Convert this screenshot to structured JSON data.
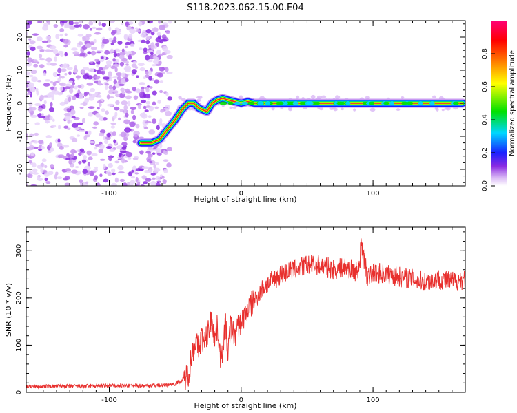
{
  "title": "S118.2023.062.15.00.E04",
  "colors": {
    "snr_line": "#e8302e",
    "ridge_core": "#e8302e",
    "noise": "#8a2be2"
  },
  "chart_data": [
    {
      "type": "heatmap",
      "xlabel": "Height of straight line (km)",
      "ylabel": "Frequency (Hz)",
      "xlim": [
        -163,
        170
      ],
      "ylim": [
        -25,
        25
      ],
      "x_ticks": [
        -100,
        0,
        100
      ],
      "y_ticks": [
        -20,
        -10,
        0,
        10,
        20
      ],
      "colorbar": {
        "label": "Normalized spectral amplitude",
        "range": [
          0.0,
          1.0
        ],
        "ticks": [
          "0.0",
          "0.2",
          "0.4",
          "0.6",
          "0.8"
        ],
        "colormap": [
          "#ffffff",
          "#d9b8f5",
          "#8a2be2",
          "#1a20ff",
          "#00d7ff",
          "#00e000",
          "#ffff00",
          "#ff8000",
          "#ff0000",
          "#ff0077"
        ]
      },
      "ridge_trace": {
        "x": [
          -76,
          -68,
          -62,
          -58,
          -54,
          -50,
          -45,
          -40,
          -36,
          -32,
          -29,
          -26,
          -22,
          -18,
          -14,
          -10,
          -5,
          0,
          5,
          10,
          20,
          40,
          60,
          80,
          100,
          120,
          140,
          160,
          168
        ],
        "y": [
          -12,
          -12,
          -11,
          -9,
          -7,
          -5,
          -2,
          0,
          0,
          -1.5,
          -2,
          -2.5,
          0,
          1,
          1.5,
          1,
          0.5,
          0,
          0.5,
          0,
          0,
          0,
          0,
          0,
          0,
          0,
          0,
          0,
          0
        ]
      },
      "noise_region_x": [
        -163,
        -54
      ]
    },
    {
      "type": "line",
      "xlabel": "Height of straight line (km)",
      "ylabel": "SNR (10 * v/v)",
      "xlim": [
        -163,
        170
      ],
      "ylim": [
        0,
        350
      ],
      "x_ticks": [
        -100,
        0,
        100
      ],
      "y_ticks": [
        0,
        100,
        200,
        300
      ],
      "series": [
        {
          "x": [
            -163,
            -140,
            -120,
            -100,
            -80,
            -60,
            -50,
            -45,
            -40,
            -38,
            -35,
            -32,
            -30,
            -28,
            -25,
            -22,
            -20,
            -18,
            -15,
            -12,
            -10,
            -8,
            -5,
            -2,
            0,
            5,
            10,
            15,
            20,
            25,
            30,
            40,
            50,
            60,
            70,
            80,
            88,
            92,
            96,
            100,
            110,
            120,
            130,
            140,
            150,
            160,
            170
          ],
          "y": [
            12,
            13,
            13,
            14,
            14,
            15,
            18,
            25,
            40,
            70,
            110,
            90,
            120,
            100,
            130,
            160,
            110,
            140,
            60,
            150,
            80,
            140,
            120,
            140,
            150,
            175,
            195,
            215,
            230,
            240,
            250,
            260,
            270,
            270,
            260,
            265,
            255,
            300,
            240,
            255,
            250,
            245,
            240,
            235,
            240,
            235,
            240
          ]
        }
      ]
    }
  ]
}
